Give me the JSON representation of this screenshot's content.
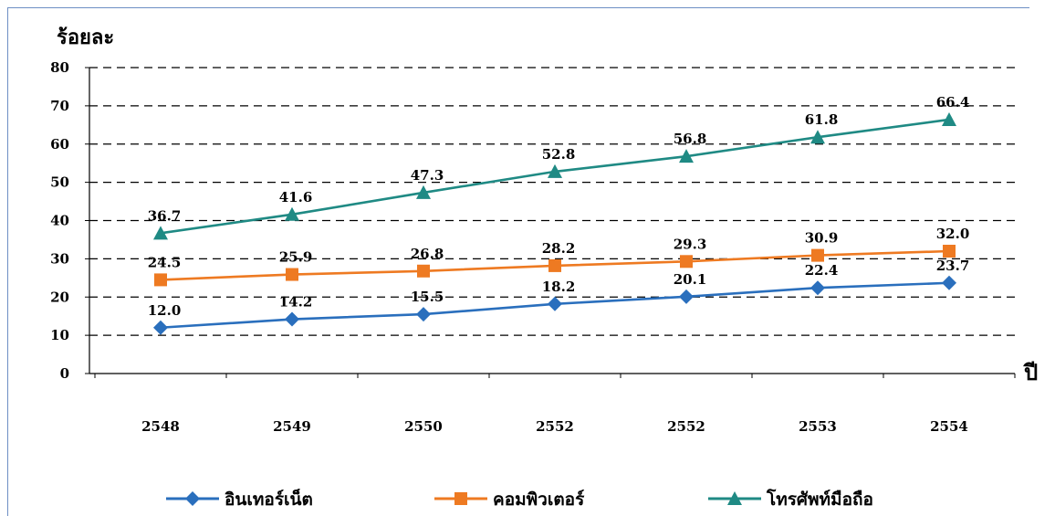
{
  "chart_data": {
    "type": "line",
    "ylabel": "ร้อยละ",
    "xlabel": "ปี",
    "ylim": [
      0,
      80
    ],
    "yticks": [
      0,
      10,
      20,
      30,
      40,
      50,
      60,
      70,
      80
    ],
    "grid": "dashed-horizontal",
    "legend_position": "bottom",
    "categories": [
      "2548",
      "2549",
      "2550",
      "2552",
      "2552",
      "2553",
      "2554"
    ],
    "series": [
      {
        "name": "อินเทอร์เน็ต",
        "values": [
          12.0,
          14.2,
          15.5,
          18.2,
          20.1,
          22.4,
          23.7
        ],
        "labels": [
          "12.0",
          "14.2",
          "15.5",
          "18.2",
          "20.1",
          "22.4",
          "23.7"
        ],
        "color": "#2a6fbd",
        "marker": "diamond"
      },
      {
        "name": "คอมพิวเตอร์",
        "values": [
          24.5,
          25.9,
          26.8,
          28.2,
          29.3,
          30.9,
          32.0
        ],
        "labels": [
          "24.5",
          "25.9",
          "26.8",
          "28.2",
          "29.3",
          "30.9",
          "32.0"
        ],
        "color": "#ee7a22",
        "marker": "square"
      },
      {
        "name": "โทรศัพท์มือถือ",
        "values": [
          36.7,
          41.6,
          47.3,
          52.8,
          56.8,
          61.8,
          66.4
        ],
        "labels": [
          "36.7",
          "41.6",
          "47.3",
          "52.8",
          "56.8",
          "61.8",
          "66.4"
        ],
        "color": "#1f8a84",
        "marker": "triangle"
      }
    ]
  }
}
